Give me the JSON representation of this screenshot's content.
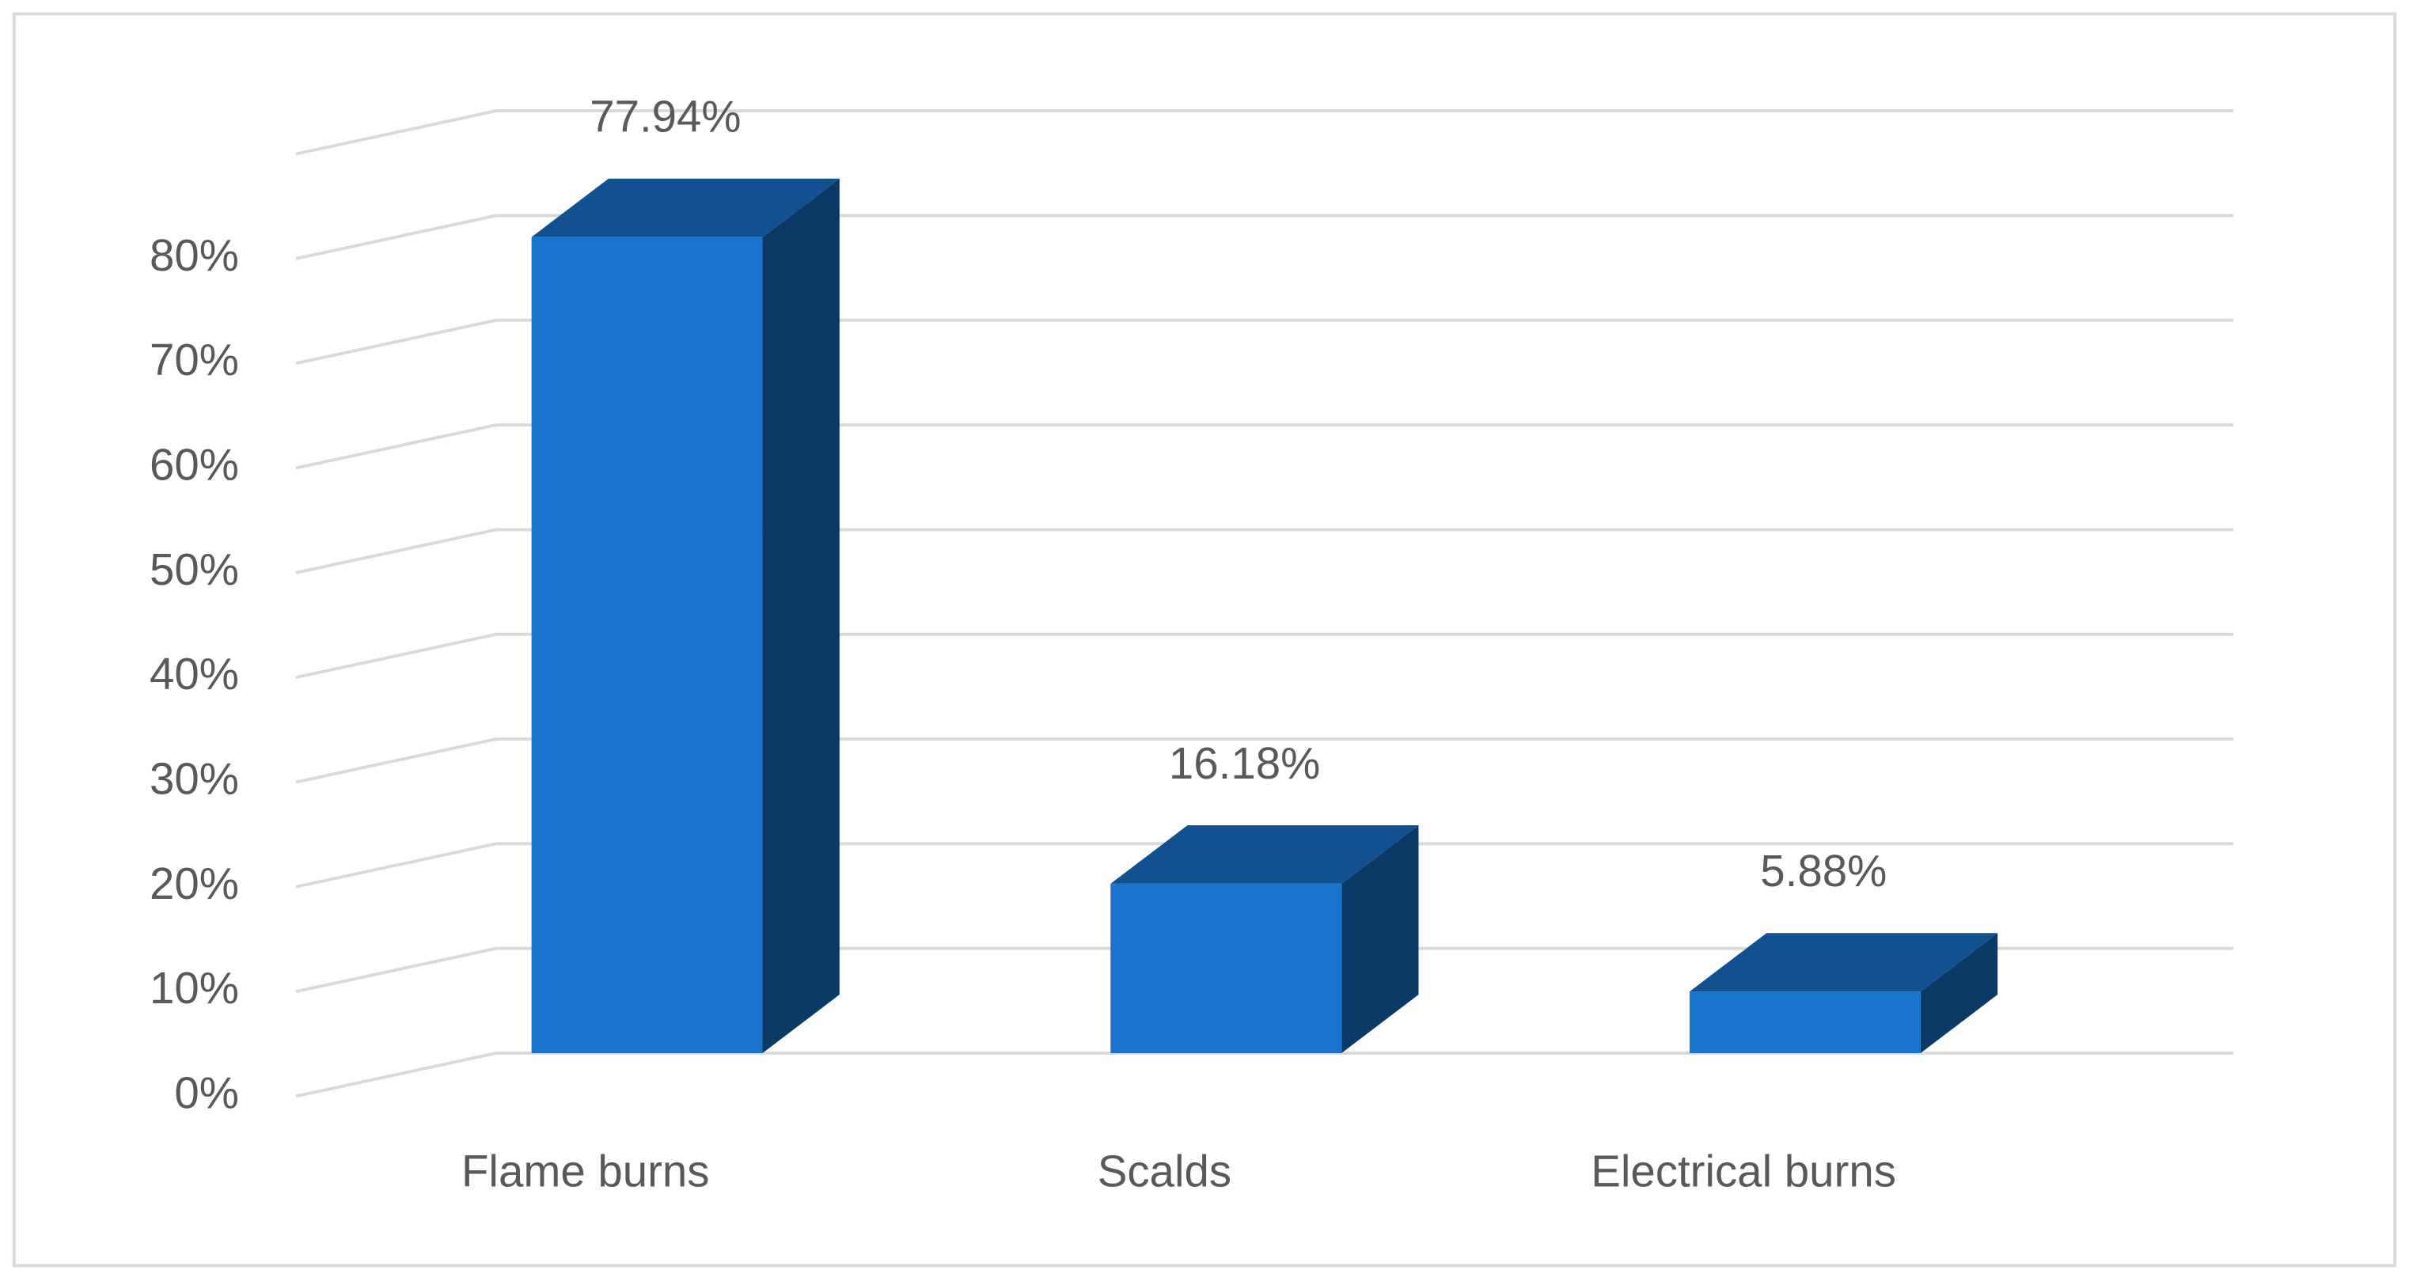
{
  "chart_data": {
    "type": "bar3d",
    "categories": [
      "Flame burns",
      "Scalds",
      "Electrical burns"
    ],
    "values": [
      77.94,
      16.18,
      5.88
    ],
    "value_labels": [
      "77.94%",
      "16.18%",
      "5.88%"
    ],
    "color": "#1874cd",
    "ylim": [
      0,
      90
    ],
    "yticks": [
      {
        "value": 0,
        "label": "0%"
      },
      {
        "value": 10,
        "label": "10%"
      },
      {
        "value": 20,
        "label": "20%"
      },
      {
        "value": 30,
        "label": "30%"
      },
      {
        "value": 40,
        "label": "40%"
      },
      {
        "value": 50,
        "label": "50%"
      },
      {
        "value": 60,
        "label": "60%"
      },
      {
        "value": 70,
        "label": "70%"
      },
      {
        "value": 80,
        "label": "80%"
      }
    ],
    "grid": true
  }
}
